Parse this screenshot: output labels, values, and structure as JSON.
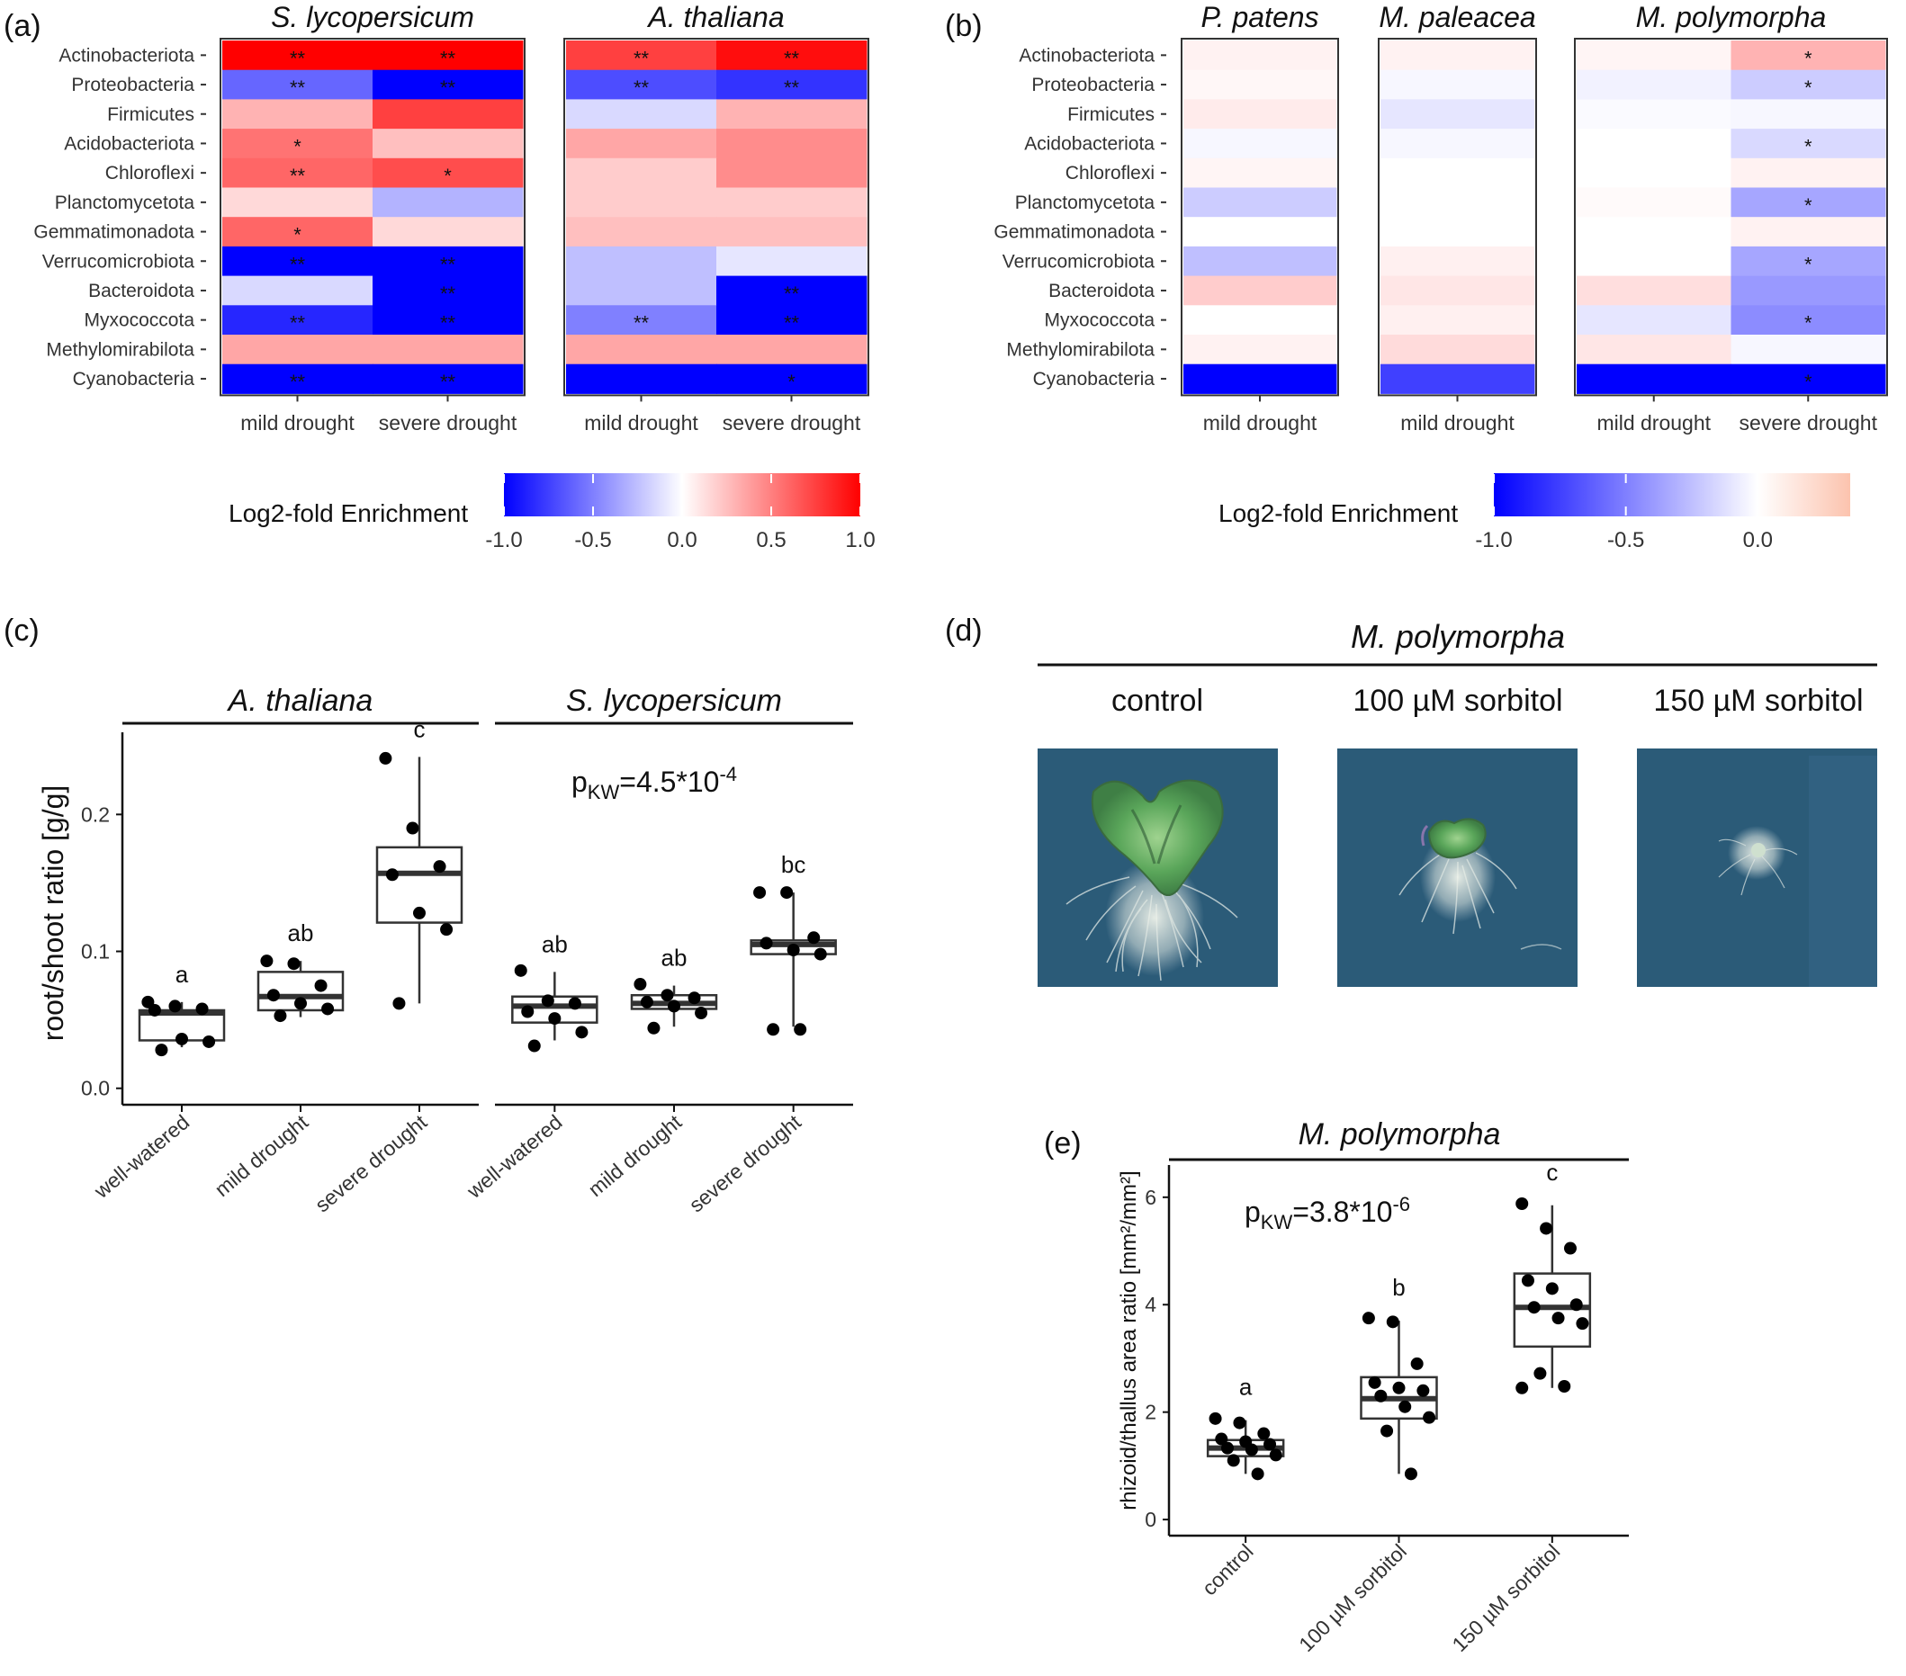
{
  "panel_a": {
    "label": "(a)",
    "legend": {
      "title": "Log2-fold Enrichment",
      "ticks": [
        "-1.0",
        "-0.5",
        "0.0",
        "0.5",
        "1.0"
      ]
    }
  },
  "panel_b": {
    "label": "(b)",
    "legend": {
      "title": "Log2-fold Enrichment",
      "ticks": [
        "-1.0",
        "-0.5",
        "0.0"
      ]
    }
  },
  "panel_c": {
    "label": "(c)",
    "pkw_base": "p",
    "pkw_sub": "KW",
    "pkw_rest": "=4.5*10",
    "pkw_exp": "-4"
  },
  "panel_d": {
    "label": "(d)",
    "title": "M. polymorpha",
    "conditions": [
      "control",
      "100 µM sorbitol",
      "150 µM sorbitol"
    ]
  },
  "panel_e": {
    "label": "(e)",
    "pkw_base": "p",
    "pkw_sub": "KW",
    "pkw_rest": "=3.8*10",
    "pkw_exp": "-6"
  },
  "colors": {
    "negative": "#0000ff",
    "zero": "#ffffff",
    "positive": "#ff0000",
    "photo_background": "#2b5b78",
    "thallus_green": "#5aa65a"
  },
  "chart_data": [
    {
      "id": "a",
      "type": "heatmap",
      "rows": [
        "Actinobacteriota",
        "Proteobacteria",
        "Firmicutes",
        "Acidobacteriota",
        "Chloroflexi",
        "Planctomycetota",
        "Gemmatimonadota",
        "Verrucomicrobiota",
        "Bacteroidota",
        "Myxococcota",
        "Methylomirabilota",
        "Cyanobacteria"
      ],
      "color_range": [
        -1.0,
        1.0
      ],
      "legend_title": "Log2-fold Enrichment",
      "facets": [
        {
          "name": "S. lycopersicum",
          "columns": [
            "mild drought",
            "severe drought"
          ],
          "values": [
            [
              1.0,
              1.0
            ],
            [
              -0.6,
              -1.0
            ],
            [
              0.3,
              0.75
            ],
            [
              0.55,
              0.25
            ],
            [
              0.6,
              0.7
            ],
            [
              0.15,
              -0.3
            ],
            [
              0.6,
              0.15
            ],
            [
              -1.0,
              -1.0
            ],
            [
              -0.15,
              -1.0
            ],
            [
              -0.85,
              -1.0
            ],
            [
              0.35,
              0.35
            ],
            [
              -1.0,
              -1.0
            ]
          ],
          "significance": [
            [
              "**",
              "**"
            ],
            [
              "**",
              "**"
            ],
            [
              "",
              ""
            ],
            [
              "*",
              ""
            ],
            [
              "**",
              "*"
            ],
            [
              "",
              ""
            ],
            [
              "*",
              ""
            ],
            [
              "**",
              "**"
            ],
            [
              "",
              "**"
            ],
            [
              "**",
              "**"
            ],
            [
              "",
              ""
            ],
            [
              "**",
              "**"
            ]
          ]
        },
        {
          "name": "A. thaliana",
          "columns": [
            "mild drought",
            "severe drought"
          ],
          "values": [
            [
              0.75,
              0.95
            ],
            [
              -0.7,
              -0.8
            ],
            [
              -0.15,
              0.3
            ],
            [
              0.35,
              0.45
            ],
            [
              0.2,
              0.45
            ],
            [
              0.2,
              0.2
            ],
            [
              0.25,
              0.25
            ],
            [
              -0.25,
              -0.1
            ],
            [
              -0.25,
              -1.0
            ],
            [
              -0.5,
              -1.0
            ],
            [
              0.35,
              0.35
            ],
            [
              -1.0,
              -1.0
            ]
          ],
          "significance": [
            [
              "**",
              "**"
            ],
            [
              "**",
              "**"
            ],
            [
              "",
              ""
            ],
            [
              "",
              ""
            ],
            [
              "",
              ""
            ],
            [
              "",
              ""
            ],
            [
              "",
              ""
            ],
            [
              "",
              ""
            ],
            [
              "",
              "**"
            ],
            [
              "**",
              "**"
            ],
            [
              "",
              ""
            ],
            [
              "",
              "*"
            ]
          ]
        }
      ]
    },
    {
      "id": "b",
      "type": "heatmap",
      "rows": [
        "Actinobacteriota",
        "Proteobacteria",
        "Firmicutes",
        "Acidobacteriota",
        "Chloroflexi",
        "Planctomycetota",
        "Gemmatimonadota",
        "Verrucomicrobiota",
        "Bacteroidota",
        "Myxococcota",
        "Methylomirabilota",
        "Cyanobacteria"
      ],
      "color_range": [
        -1.0,
        0.35
      ],
      "legend_title": "Log2-fold Enrichment",
      "facets": [
        {
          "name": "P. patens",
          "columns": [
            "mild drought"
          ],
          "values": [
            [
              0.05
            ],
            [
              0.03
            ],
            [
              0.08
            ],
            [
              -0.03
            ],
            [
              0.04
            ],
            [
              -0.2
            ],
            [
              0.0
            ],
            [
              -0.25
            ],
            [
              0.2
            ],
            [
              0.0
            ],
            [
              0.05
            ],
            [
              -1.0
            ]
          ],
          "significance": [
            [
              ""
            ],
            [
              ""
            ],
            [
              ""
            ],
            [
              ""
            ],
            [
              ""
            ],
            [
              ""
            ],
            [
              ""
            ],
            [
              ""
            ],
            [
              ""
            ],
            [
              ""
            ],
            [
              ""
            ],
            [
              ""
            ]
          ]
        },
        {
          "name": "M. paleacea",
          "columns": [
            "mild drought"
          ],
          "values": [
            [
              0.05
            ],
            [
              -0.03
            ],
            [
              -0.1
            ],
            [
              -0.03
            ],
            [
              0.0
            ],
            [
              0.0
            ],
            [
              0.0
            ],
            [
              0.06
            ],
            [
              0.1
            ],
            [
              0.06
            ],
            [
              0.14
            ],
            [
              -0.75
            ]
          ],
          "significance": [
            [
              ""
            ],
            [
              ""
            ],
            [
              ""
            ],
            [
              ""
            ],
            [
              ""
            ],
            [
              ""
            ],
            [
              ""
            ],
            [
              ""
            ],
            [
              ""
            ],
            [
              ""
            ],
            [
              ""
            ],
            [
              ""
            ]
          ]
        },
        {
          "name": "M. polymorpha",
          "columns": [
            "mild drought",
            "severe drought"
          ],
          "values": [
            [
              0.04,
              0.3
            ],
            [
              -0.05,
              -0.2
            ],
            [
              -0.02,
              -0.03
            ],
            [
              0.0,
              -0.15
            ],
            [
              0.0,
              0.05
            ],
            [
              0.02,
              -0.35
            ],
            [
              0.0,
              0.05
            ],
            [
              0.0,
              -0.35
            ],
            [
              0.13,
              -0.4
            ],
            [
              -0.1,
              -0.45
            ],
            [
              0.1,
              -0.03
            ],
            [
              -1.0,
              -1.0
            ]
          ],
          "significance": [
            [
              "",
              "*"
            ],
            [
              "",
              "*"
            ],
            [
              "",
              ""
            ],
            [
              "",
              "*"
            ],
            [
              "",
              ""
            ],
            [
              "",
              "*"
            ],
            [
              "",
              ""
            ],
            [
              "",
              "*"
            ],
            [
              "",
              ""
            ],
            [
              "",
              "*"
            ],
            [
              "",
              ""
            ],
            [
              "",
              "*"
            ]
          ]
        }
      ]
    },
    {
      "id": "c",
      "type": "box",
      "ylabel": "root/shoot ratio [g/g]",
      "ylim": [
        -0.012,
        0.26
      ],
      "yticks": [
        0.0,
        0.1,
        0.2
      ],
      "ytick_labels": [
        "0.0",
        "0.1",
        "0.2"
      ],
      "facets": [
        {
          "name": "A. thaliana",
          "categories": [
            "well-watered",
            "mild drought",
            "severe drought"
          ],
          "letters": [
            "a",
            "ab",
            "c"
          ],
          "boxes": [
            {
              "min": 0.03,
              "q1": 0.035,
              "median": 0.055,
              "q3": 0.057,
              "max": 0.063,
              "points": [
                0.063,
                0.06,
                0.058,
                0.057,
                0.036,
                0.034,
                0.028
              ]
            },
            {
              "min": 0.052,
              "q1": 0.057,
              "median": 0.067,
              "q3": 0.085,
              "max": 0.093,
              "points": [
                0.093,
                0.091,
                0.075,
                0.068,
                0.062,
                0.058,
                0.053
              ]
            },
            {
              "min": 0.062,
              "q1": 0.121,
              "median": 0.157,
              "q3": 0.176,
              "max": 0.242,
              "points": [
                0.241,
                0.19,
                0.162,
                0.156,
                0.128,
                0.116,
                0.062
              ]
            }
          ]
        },
        {
          "name": "S. lycopersicum",
          "categories": [
            "well-watered",
            "mild drought",
            "severe drought"
          ],
          "letters": [
            "ab",
            "ab",
            "bc"
          ],
          "boxes": [
            {
              "min": 0.035,
              "q1": 0.048,
              "median": 0.06,
              "q3": 0.067,
              "max": 0.085,
              "points": [
                0.086,
                0.064,
                0.062,
                0.056,
                0.051,
                0.041,
                0.031
              ]
            },
            {
              "min": 0.045,
              "q1": 0.058,
              "median": 0.062,
              "q3": 0.068,
              "max": 0.075,
              "points": [
                0.076,
                0.068,
                0.066,
                0.063,
                0.06,
                0.055,
                0.044
              ]
            },
            {
              "min": 0.045,
              "q1": 0.098,
              "median": 0.105,
              "q3": 0.108,
              "max": 0.143,
              "points": [
                0.143,
                0.143,
                0.11,
                0.106,
                0.101,
                0.098,
                0.043,
                0.043
              ]
            }
          ]
        }
      ]
    },
    {
      "id": "e",
      "type": "box",
      "title": "M. polymorpha",
      "ylabel": "rhizoid/thallus area ratio [mm²/mm²]",
      "ylim": [
        -0.3,
        6.6
      ],
      "yticks": [
        0,
        2,
        4,
        6
      ],
      "ytick_labels": [
        "0",
        "2",
        "4",
        "6"
      ],
      "categories": [
        "control",
        "100 µM sorbitol",
        "150 µM sorbitol"
      ],
      "letters": [
        "a",
        "b",
        "c"
      ],
      "boxes": [
        {
          "min": 0.85,
          "q1": 1.18,
          "median": 1.33,
          "q3": 1.48,
          "max": 1.85,
          "points": [
            1.88,
            1.8,
            1.6,
            1.5,
            1.45,
            1.4,
            1.33,
            1.3,
            1.2,
            1.1,
            0.85
          ]
        },
        {
          "min": 0.85,
          "q1": 1.88,
          "median": 2.25,
          "q3": 2.65,
          "max": 3.7,
          "points": [
            3.75,
            3.68,
            2.9,
            2.55,
            2.45,
            2.4,
            2.3,
            2.1,
            1.9,
            1.65,
            0.85
          ]
        },
        {
          "min": 2.45,
          "q1": 3.22,
          "median": 3.95,
          "q3": 4.58,
          "max": 5.85,
          "points": [
            5.88,
            5.42,
            5.05,
            4.45,
            4.3,
            4.0,
            3.95,
            3.75,
            3.65,
            2.72,
            2.48,
            2.45
          ]
        }
      ]
    }
  ]
}
